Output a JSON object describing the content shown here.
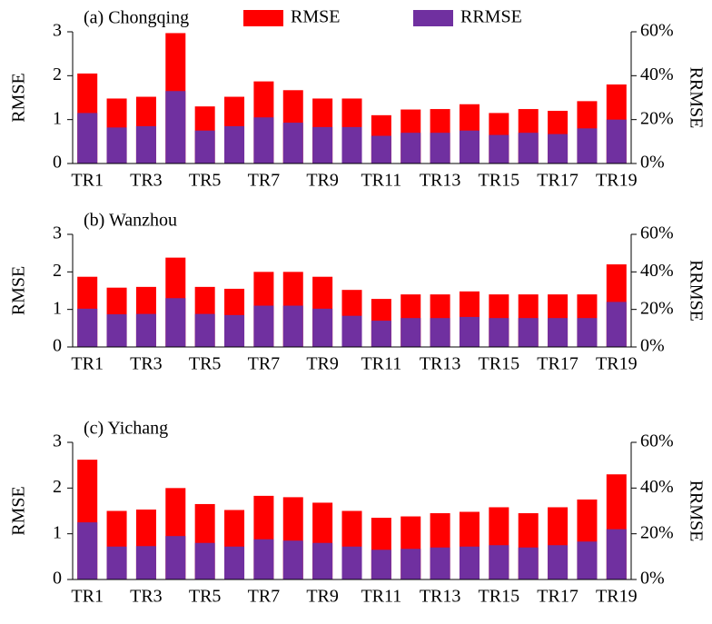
{
  "chart_data": [
    {
      "type": "bar",
      "title": "(a) Chongqing",
      "ylabel": "RMSE",
      "y2label": "RRMSE",
      "legend": "top",
      "categories": [
        "TR1",
        null,
        "TR3",
        null,
        "TR5",
        null,
        "TR7",
        null,
        "TR9",
        null,
        "TR11",
        null,
        "TR13",
        null,
        "TR15",
        null,
        "TR17",
        null,
        "TR19"
      ],
      "series": [
        {
          "name": "RMSE",
          "color": "#ff0000",
          "values": [
            2.05,
            1.48,
            1.52,
            2.97,
            1.3,
            1.52,
            1.87,
            1.67,
            1.48,
            1.48,
            1.1,
            1.23,
            1.24,
            1.35,
            1.15,
            1.24,
            1.2,
            1.42,
            1.8
          ]
        },
        {
          "name": "RRMSE",
          "color": "#7030a0",
          "axis": "y2",
          "values": [
            23,
            16.4,
            17,
            33,
            15,
            17,
            21,
            18.6,
            16.6,
            16.6,
            12.6,
            14,
            14,
            15,
            13,
            14,
            13.4,
            16,
            20
          ]
        }
      ],
      "ylim": [
        0,
        3
      ],
      "yticks": [
        0,
        1,
        2,
        3
      ],
      "y2lim": [
        0,
        60
      ],
      "y2ticks": [
        {
          "value": 0,
          "label": "0%"
        },
        {
          "value": 20,
          "label": "20%"
        },
        {
          "value": 40,
          "label": "40%"
        },
        {
          "value": 60,
          "label": "60%"
        }
      ]
    },
    {
      "type": "bar",
      "title": "(b) Wanzhou",
      "ylabel": "RMSE",
      "y2label": "RRMSE",
      "categories": [
        "TR1",
        null,
        "TR3",
        null,
        "TR5",
        null,
        "TR7",
        null,
        "TR9",
        null,
        "TR11",
        null,
        "TR13",
        null,
        "TR15",
        null,
        "TR17",
        null,
        "TR19"
      ],
      "series": [
        {
          "name": "RMSE",
          "color": "#ff0000",
          "values": [
            1.87,
            1.58,
            1.6,
            2.38,
            1.6,
            1.55,
            2.0,
            2.0,
            1.87,
            1.52,
            1.28,
            1.4,
            1.4,
            1.48,
            1.4,
            1.4,
            1.4,
            1.4,
            2.2
          ]
        },
        {
          "name": "RRMSE",
          "color": "#7030a0",
          "axis": "y2",
          "values": [
            20.4,
            17.4,
            17.6,
            26,
            17.6,
            17,
            22,
            22,
            20.4,
            16.6,
            14,
            15.4,
            15.4,
            16,
            15.4,
            15.4,
            15.4,
            15.4,
            24
          ]
        }
      ],
      "ylim": [
        0,
        3
      ],
      "yticks": [
        0,
        1,
        2,
        3
      ],
      "y2lim": [
        0,
        60
      ],
      "y2ticks": [
        {
          "value": 0,
          "label": "0%"
        },
        {
          "value": 20,
          "label": "20%"
        },
        {
          "value": 40,
          "label": "40%"
        },
        {
          "value": 60,
          "label": "60%"
        }
      ]
    },
    {
      "type": "bar",
      "title": "(c) Yichang",
      "ylabel": "RMSE",
      "y2label": "RRMSE",
      "categories": [
        "TR1",
        null,
        "TR3",
        null,
        "TR5",
        null,
        "TR7",
        null,
        "TR9",
        null,
        "TR11",
        null,
        "TR13",
        null,
        "TR15",
        null,
        "TR17",
        null,
        "TR19"
      ],
      "series": [
        {
          "name": "RMSE",
          "color": "#ff0000",
          "values": [
            2.62,
            1.5,
            1.53,
            2.0,
            1.65,
            1.52,
            1.83,
            1.8,
            1.68,
            1.5,
            1.35,
            1.38,
            1.45,
            1.48,
            1.58,
            1.45,
            1.58,
            1.75,
            2.3
          ]
        },
        {
          "name": "RRMSE",
          "color": "#7030a0",
          "axis": "y2",
          "values": [
            25,
            14.4,
            14.6,
            19,
            16,
            14.4,
            17.6,
            17,
            16,
            14.4,
            13,
            13.4,
            14,
            14.4,
            15,
            14,
            15,
            16.6,
            22
          ]
        }
      ],
      "ylim": [
        0,
        3
      ],
      "yticks": [
        0,
        1,
        2,
        3
      ],
      "y2lim": [
        0,
        60
      ],
      "y2ticks": [
        {
          "value": 0,
          "label": "0%"
        },
        {
          "value": 20,
          "label": "20%"
        },
        {
          "value": 40,
          "label": "40%"
        },
        {
          "value": 60,
          "label": "60%"
        }
      ]
    }
  ]
}
